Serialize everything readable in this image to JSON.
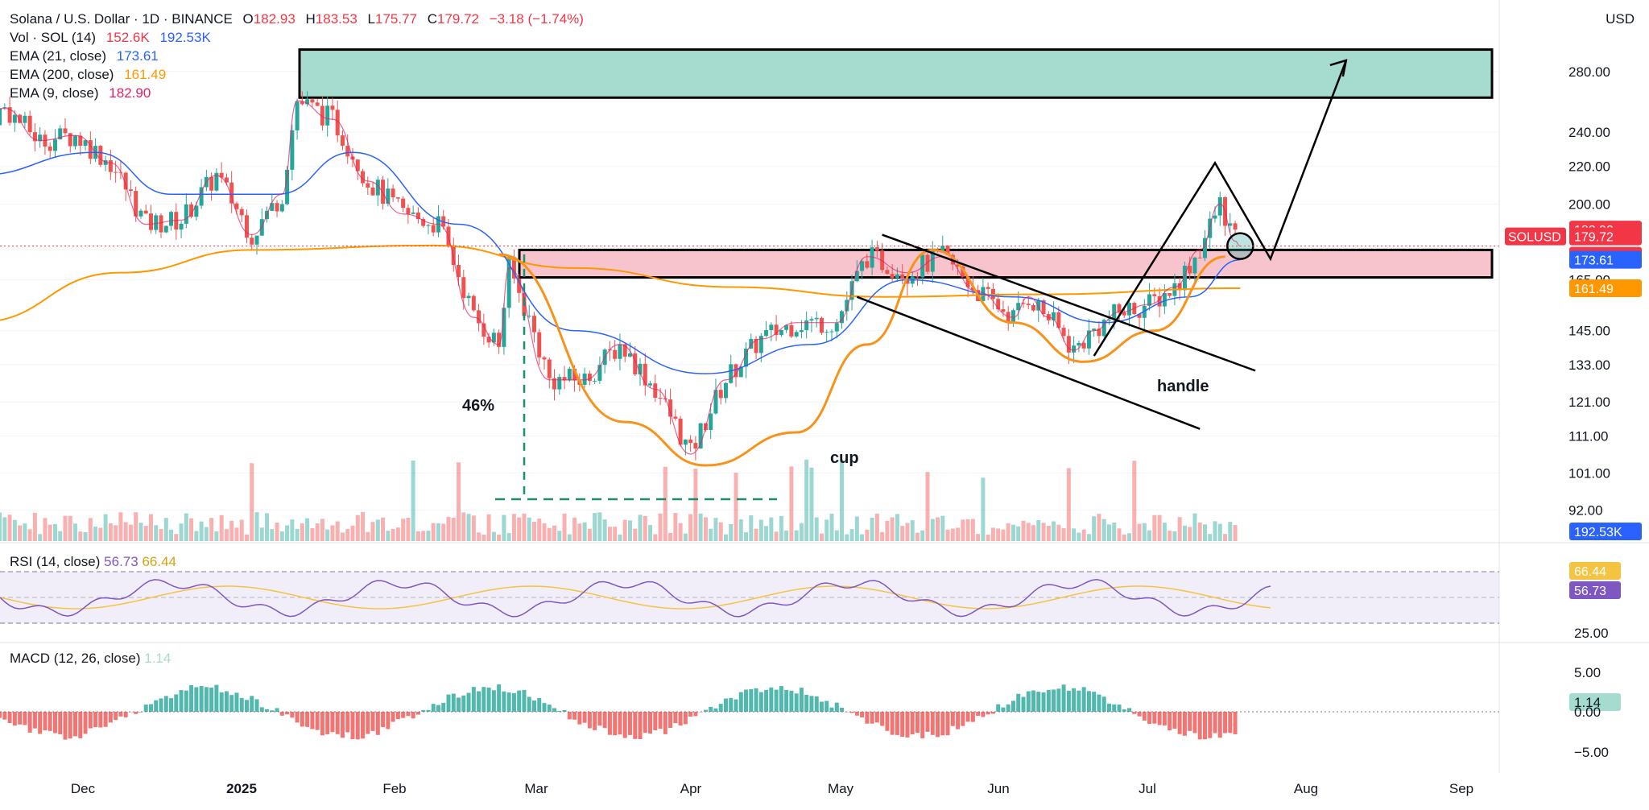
{
  "header": {
    "symbol": "Solana / U.S. Dollar · 1D · BINANCE",
    "ohlc": {
      "o_label": "O",
      "o": "182.93",
      "h_label": "H",
      "h": "183.53",
      "l_label": "L",
      "l": "175.77",
      "c_label": "C",
      "c": "179.72",
      "change": "−3.18 (−1.74%)"
    },
    "indicators": [
      {
        "label": "Vol · SOL (14)",
        "values": [
          "152.6K",
          "192.53K"
        ],
        "colors": [
          "#f23645",
          "#2962ff"
        ]
      },
      {
        "label": "EMA (21, close)",
        "values": [
          "173.61"
        ],
        "colors": [
          "#2962ff"
        ]
      },
      {
        "label": "EMA (200, close)",
        "values": [
          "161.49"
        ],
        "colors": [
          "#ff9800"
        ]
      },
      {
        "label": "EMA (9, close)",
        "values": [
          "182.90"
        ],
        "colors": [
          "#e91e63"
        ]
      }
    ]
  },
  "currency": "USD",
  "colors": {
    "up": "#26a69a",
    "down": "#ef5350",
    "ema9": "#e91e63",
    "ema21": "#2962ff",
    "ema200": "#ff9800",
    "rsi": "#7e57c2",
    "rsi_ma": "#f5c342",
    "resistance_zone": "#f7c4cd",
    "target_zone": "#a6dcd0",
    "macd_up": "#26a69a",
    "macd_down": "#ef5350",
    "cup": "#f7931a"
  },
  "price_axis": {
    "ticks": [
      "280.00",
      "240.00",
      "220.00",
      "200.00",
      "165.00",
      "145.00",
      "133.00",
      "121.00",
      "111.00",
      "101.00",
      "92.00"
    ],
    "badges": [
      {
        "text": "182.90",
        "color": "#f23645"
      },
      {
        "text": "179.72",
        "color": "#f23645"
      },
      {
        "text": "07:01:48",
        "color": "#f23645"
      },
      {
        "text": "173.61",
        "color": "#2962ff"
      },
      {
        "text": "161.49",
        "color": "#ff9800"
      },
      {
        "text": "192.53K",
        "color": "#2962ff"
      }
    ],
    "symbol_tag": "SOLUSD"
  },
  "rsi": {
    "label": "RSI (14, close)",
    "value": "56.73",
    "ma_value": "66.44",
    "ticks": [
      "66.44",
      "56.73",
      "25.00"
    ]
  },
  "macd": {
    "label": "MACD (12, 26, close)",
    "value": "1.14",
    "ticks": [
      "5.00",
      "1.14",
      "0.00",
      "−5.00"
    ]
  },
  "x_axis": {
    "labels": [
      "Dec",
      "2025",
      "Feb",
      "Mar",
      "Apr",
      "May",
      "Jun",
      "Jul",
      "Aug",
      "Sep"
    ]
  },
  "annotations": {
    "pct": "46%",
    "cup": "cup",
    "handle": "handle"
  },
  "chart_data": {
    "type": "candlestick",
    "scale": "log",
    "x_range": [
      "2024-11-15",
      "2025-09-15"
    ],
    "ylim": [
      85,
      300
    ],
    "resistance_zone": [
      166,
      178
    ],
    "target_zone": [
      262,
      296
    ],
    "price_path": [
      [
        "2024-11-16",
        240
      ],
      [
        "2024-11-22",
        255
      ],
      [
        "2024-11-29",
        235
      ],
      [
        "2024-12-06",
        238
      ],
      [
        "2024-12-13",
        222
      ],
      [
        "2024-12-20",
        190
      ],
      [
        "2024-12-27",
        192
      ],
      [
        "2025-01-03",
        215
      ],
      [
        "2025-01-10",
        185
      ],
      [
        "2025-01-16",
        205
      ],
      [
        "2025-01-19",
        260
      ],
      [
        "2025-01-26",
        248
      ],
      [
        "2025-02-02",
        212
      ],
      [
        "2025-02-09",
        195
      ],
      [
        "2025-02-16",
        190
      ],
      [
        "2025-02-23",
        150
      ],
      [
        "2025-02-28",
        140
      ],
      [
        "2025-03-02",
        170
      ],
      [
        "2025-03-10",
        128
      ],
      [
        "2025-03-17",
        128
      ],
      [
        "2025-03-24",
        140
      ],
      [
        "2025-03-31",
        125
      ],
      [
        "2025-04-07",
        106
      ],
      [
        "2025-04-14",
        128
      ],
      [
        "2025-04-21",
        142
      ],
      [
        "2025-04-28",
        148
      ],
      [
        "2025-05-06",
        148
      ],
      [
        "2025-05-12",
        175
      ],
      [
        "2025-05-20",
        168
      ],
      [
        "2025-05-27",
        175
      ],
      [
        "2025-06-03",
        160
      ],
      [
        "2025-06-10",
        150
      ],
      [
        "2025-06-13",
        158
      ],
      [
        "2025-06-17",
        150
      ],
      [
        "2025-06-22",
        138
      ],
      [
        "2025-06-26",
        145
      ],
      [
        "2025-07-01",
        152
      ],
      [
        "2025-07-07",
        155
      ],
      [
        "2025-07-12",
        162
      ],
      [
        "2025-07-17",
        178
      ],
      [
        "2025-07-21",
        200
      ],
      [
        "2025-07-24",
        182
      ],
      [
        "2025-07-25",
        179.72
      ]
    ],
    "ema21_path": [
      [
        "2024-11-16",
        215
      ],
      [
        "2024-12-10",
        228
      ],
      [
        "2024-12-25",
        205
      ],
      [
        "2025-01-15",
        205
      ],
      [
        "2025-01-30",
        228
      ],
      [
        "2025-02-20",
        190
      ],
      [
        "2025-03-15",
        145
      ],
      [
        "2025-04-10",
        130
      ],
      [
        "2025-05-01",
        140
      ],
      [
        "2025-05-20",
        165
      ],
      [
        "2025-06-10",
        158
      ],
      [
        "2025-06-28",
        148
      ],
      [
        "2025-07-15",
        158
      ],
      [
        "2025-07-25",
        173.61
      ]
    ],
    "ema200_path": [
      [
        "2024-11-16",
        148
      ],
      [
        "2024-12-15",
        168
      ],
      [
        "2025-01-10",
        178
      ],
      [
        "2025-02-15",
        180
      ],
      [
        "2025-03-15",
        170
      ],
      [
        "2025-04-15",
        162
      ],
      [
        "2025-05-15",
        158
      ],
      [
        "2025-06-15",
        159
      ],
      [
        "2025-07-25",
        161.49
      ]
    ],
    "projection_path": [
      [
        "2025-06-26",
        136
      ],
      [
        "2025-07-20",
        222
      ],
      [
        "2025-07-31",
        174
      ],
      [
        "2025-08-15",
        288
      ]
    ],
    "cup_path": [
      [
        "2025-02-28",
        176
      ],
      [
        "2025-03-25",
        115
      ],
      [
        "2025-04-10",
        103
      ],
      [
        "2025-04-28",
        112
      ],
      [
        "2025-05-12",
        140
      ],
      [
        "2025-05-25",
        178
      ]
    ],
    "handle_cup_path": [
      [
        "2025-05-25",
        178
      ],
      [
        "2025-06-10",
        148
      ],
      [
        "2025-06-24",
        134
      ],
      [
        "2025-07-08",
        145
      ],
      [
        "2025-07-22",
        175
      ]
    ],
    "channel_lines": [
      [
        [
          "2025-05-15",
          185
        ],
        [
          "2025-07-28",
          131
        ]
      ],
      [
        [
          "2025-05-10",
          158
        ],
        [
          "2025-07-17",
          113
        ]
      ]
    ],
    "volume": {
      "last": "152.6K",
      "ma": "192.53K"
    },
    "rsi_value": 56.73,
    "rsi_ma_value": 66.44,
    "macd_value": 1.14
  }
}
